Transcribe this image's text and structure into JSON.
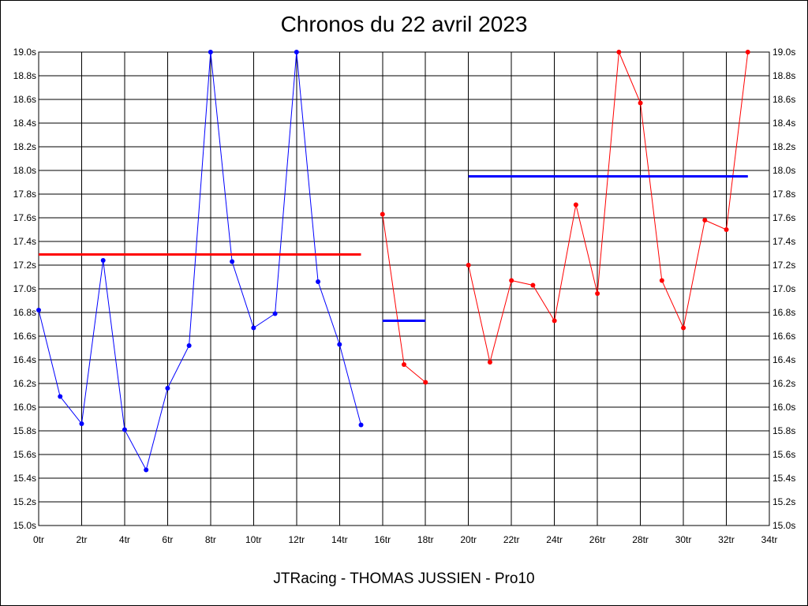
{
  "title": "Chronos du 22 avril 2023",
  "footer": "JTRacing - THOMAS JUSSIEN - Pro10",
  "chart_data": {
    "type": "line",
    "title": "Chronos du 22 avril 2023",
    "xlabel": "",
    "ylabel": "",
    "xlim": [
      0,
      34
    ],
    "ylim": [
      15.0,
      19.0
    ],
    "grid": true,
    "x_ticks": [
      "0tr",
      "2tr",
      "4tr",
      "6tr",
      "8tr",
      "10tr",
      "12tr",
      "14tr",
      "16tr",
      "18tr",
      "20tr",
      "22tr",
      "24tr",
      "26tr",
      "28tr",
      "30tr",
      "32tr",
      "34tr"
    ],
    "y_ticks": [
      "15.0s",
      "15.2s",
      "15.4s",
      "15.6s",
      "15.8s",
      "16.0s",
      "16.2s",
      "16.4s",
      "16.6s",
      "16.8s",
      "17.0s",
      "17.2s",
      "17.4s",
      "17.6s",
      "17.8s",
      "18.0s",
      "18.2s",
      "18.4s",
      "18.6s",
      "18.8s",
      "19.0s"
    ],
    "series": [
      {
        "color": "#0000ff",
        "style": "line-markers",
        "x": [
          0,
          1,
          2,
          3,
          4,
          5,
          6,
          7,
          8,
          9,
          10,
          11,
          12,
          13,
          14,
          15
        ],
        "y": [
          16.82,
          16.09,
          15.86,
          17.24,
          15.81,
          15.47,
          16.16,
          16.52,
          19.0,
          17.23,
          16.67,
          16.79,
          19.0,
          17.06,
          16.53,
          15.85
        ]
      },
      {
        "color": "#ff0000",
        "style": "line-markers",
        "x": [
          16,
          17,
          18
        ],
        "y": [
          17.63,
          16.36,
          16.21
        ]
      },
      {
        "color": "#ff0000",
        "style": "line-markers",
        "x": [
          20,
          21,
          22,
          23,
          24,
          25,
          26,
          27,
          28,
          29,
          30,
          31,
          32,
          33
        ],
        "y": [
          17.2,
          16.38,
          17.07,
          17.03,
          16.73,
          17.71,
          16.96,
          19.0,
          18.57,
          17.07,
          16.67,
          17.58,
          17.5,
          19.0
        ]
      },
      {
        "color": "#ff0000",
        "style": "average-line",
        "x": [
          0,
          15
        ],
        "y": [
          17.29,
          17.29
        ]
      },
      {
        "color": "#0000ff",
        "style": "average-line",
        "x": [
          16,
          18
        ],
        "y": [
          16.73,
          16.73
        ]
      },
      {
        "color": "#0000ff",
        "style": "average-line",
        "x": [
          20,
          33
        ],
        "y": [
          17.95,
          17.95
        ]
      }
    ]
  }
}
